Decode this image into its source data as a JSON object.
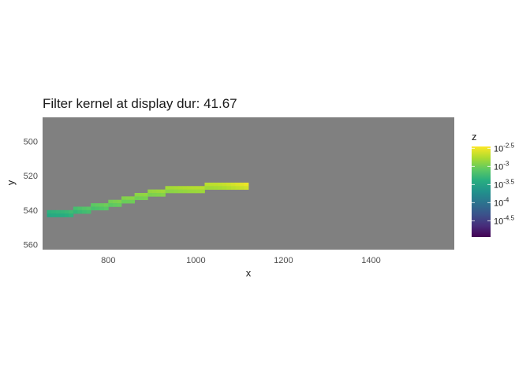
{
  "chart_data": {
    "type": "heatmap",
    "title": "Filter kernel at display dur: 41.67",
    "xlabel": "x",
    "ylabel": "y",
    "xlim": [
      650,
      1590
    ],
    "ylim": [
      563,
      486
    ],
    "y_reversed": true,
    "x_ticks": [
      800,
      1000,
      1200,
      1400
    ],
    "y_ticks": [
      500,
      520,
      540,
      560
    ],
    "panel_background": "#808080",
    "colorscale": "viridis",
    "color_log10": true,
    "color_range_log10": [
      -4.95,
      -2.45
    ],
    "legend": {
      "title": "z",
      "position": "right",
      "ticks_log10": [
        -2.5,
        -3,
        -3.5,
        -4,
        -4.5
      ],
      "tick_labels": [
        {
          "base": "10",
          "exp": "-2.5"
        },
        {
          "base": "10",
          "exp": "-3"
        },
        {
          "base": "10",
          "exp": "-3.5"
        },
        {
          "base": "10",
          "exp": "-4"
        },
        {
          "base": "10",
          "exp": "-4.5"
        }
      ]
    },
    "tile_width": 10,
    "tile_height": 2,
    "curve_points": [
      {
        "x": 665,
        "y": 542.5,
        "log10z": -3.35
      },
      {
        "x": 700,
        "y": 542.0,
        "log10z": -3.3
      },
      {
        "x": 740,
        "y": 540.0,
        "log10z": -3.15
      },
      {
        "x": 780,
        "y": 538.0,
        "log10z": -3.05
      },
      {
        "x": 820,
        "y": 535.5,
        "log10z": -2.95
      },
      {
        "x": 860,
        "y": 533.0,
        "log10z": -2.9
      },
      {
        "x": 900,
        "y": 530.5,
        "log10z": -2.85
      },
      {
        "x": 940,
        "y": 528.5,
        "log10z": -2.8
      },
      {
        "x": 980,
        "y": 527.8,
        "log10z": -2.75
      },
      {
        "x": 1020,
        "y": 527.0,
        "log10z": -2.72
      },
      {
        "x": 1060,
        "y": 526.3,
        "log10z": -2.68
      },
      {
        "x": 1090,
        "y": 525.5,
        "log10z": -2.6
      },
      {
        "x": 1115,
        "y": 525.0,
        "log10z": -2.52
      }
    ]
  }
}
